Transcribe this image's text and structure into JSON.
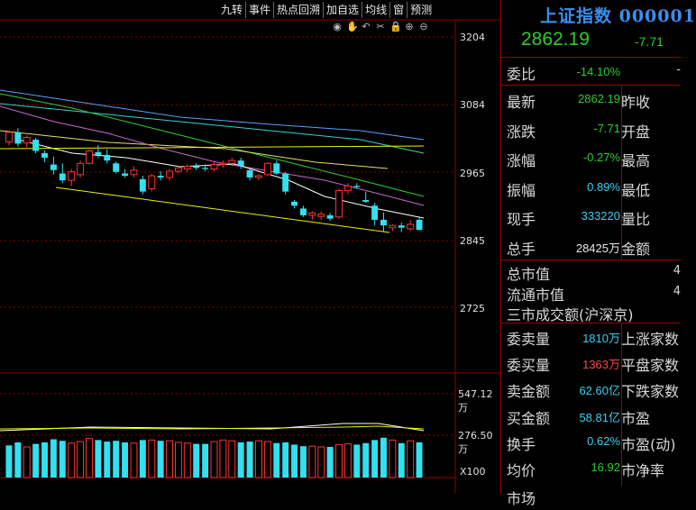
{
  "toolbar": [
    "九转",
    "事件",
    "热点回溯",
    "加自选",
    "均线",
    "窗",
    "预测"
  ],
  "tools": [
    {
      "icon": "eye-icon",
      "glyph": "◉"
    },
    {
      "icon": "hand-icon",
      "glyph": "✋"
    },
    {
      "icon": "undo-icon",
      "glyph": "↶"
    },
    {
      "icon": "scissors-icon",
      "glyph": "✂"
    },
    {
      "icon": "lock-icon",
      "glyph": "🔒"
    },
    {
      "icon": "zoom-in-icon",
      "glyph": "⊕"
    },
    {
      "icon": "zoom-out-icon",
      "glyph": "⊖"
    }
  ],
  "price_axis": [
    "3204",
    "3084",
    "2965",
    "2845",
    "2725"
  ],
  "volume_axis": [
    "547.12万",
    "276.50万",
    "X100"
  ],
  "colors": {
    "up": "#ff3333",
    "down": "#33e0f0",
    "green": "#2ecc2e",
    "grid": "#8b0000",
    "yellow": "#f0f000"
  },
  "chart_data": {
    "type": "candlestick",
    "candles": [
      [
        3018,
        3038,
        3012,
        3035
      ],
      [
        3035,
        3042,
        3010,
        3015
      ],
      [
        3016,
        3030,
        3005,
        3026
      ],
      [
        3022,
        3025,
        2998,
        3002
      ],
      [
        2998,
        3003,
        2982,
        2990
      ],
      [
        2978,
        2992,
        2960,
        2968
      ],
      [
        2962,
        2980,
        2945,
        2950
      ],
      [
        2950,
        2970,
        2940,
        2965
      ],
      [
        2960,
        2985,
        2955,
        2980
      ],
      [
        2980,
        3004,
        2978,
        3002
      ],
      [
        3000,
        3012,
        2990,
        2995
      ],
      [
        2995,
        3005,
        2980,
        2985
      ],
      [
        2980,
        2983,
        2962,
        2965
      ],
      [
        2962,
        2970,
        2955,
        2958
      ],
      [
        2960,
        2975,
        2955,
        2968
      ],
      [
        2952,
        2958,
        2925,
        2930
      ],
      [
        2935,
        2962,
        2930,
        2958
      ],
      [
        2958,
        2966,
        2950,
        2955
      ],
      [
        2955,
        2970,
        2950,
        2966
      ],
      [
        2966,
        2975,
        2962,
        2972
      ],
      [
        2970,
        2978,
        2964,
        2975
      ],
      [
        2975,
        2980,
        2968,
        2972
      ],
      [
        2972,
        2978,
        2966,
        2970
      ],
      [
        2970,
        2982,
        2966,
        2978
      ],
      [
        2978,
        2985,
        2972,
        2980
      ],
      [
        2980,
        2990,
        2975,
        2985
      ],
      [
        2985,
        2990,
        2970,
        2975
      ],
      [
        2968,
        2970,
        2950,
        2955
      ],
      [
        2955,
        2960,
        2950,
        2958
      ],
      [
        2960,
        2982,
        2958,
        2980
      ],
      [
        2980,
        2985,
        2960,
        2962
      ],
      [
        2962,
        2965,
        2925,
        2930
      ],
      [
        2912,
        2915,
        2900,
        2905
      ],
      [
        2900,
        2905,
        2885,
        2888
      ],
      [
        2888,
        2895,
        2880,
        2892
      ],
      [
        2886,
        2895,
        2880,
        2890
      ],
      [
        2888,
        2892,
        2878,
        2882
      ],
      [
        2885,
        2935,
        2882,
        2932
      ],
      [
        2932,
        2945,
        2925,
        2940
      ],
      [
        2940,
        2945,
        2935,
        2938
      ],
      [
        2915,
        2930,
        2910,
        2912
      ],
      [
        2905,
        2910,
        2870,
        2880
      ],
      [
        2880,
        2893,
        2858,
        2870
      ],
      [
        2866,
        2872,
        2860,
        2870
      ],
      [
        2870,
        2875,
        2858,
        2866
      ],
      [
        2864,
        2880,
        2860,
        2872
      ],
      [
        2880,
        2884,
        2862,
        2862
      ]
    ],
    "volume": [
      210,
      230,
      200,
      220,
      230,
      250,
      240,
      225,
      235,
      255,
      245,
      235,
      240,
      230,
      225,
      245,
      245,
      240,
      240,
      230,
      225,
      220,
      220,
      235,
      245,
      240,
      230,
      235,
      240,
      235,
      225,
      230,
      215,
      205,
      205,
      200,
      200,
      215,
      220,
      215,
      225,
      245,
      260,
      245,
      225,
      240,
      230
    ],
    "volume_colors_up": [
      0,
      0,
      1,
      0,
      0,
      0,
      0,
      1,
      1,
      1,
      0,
      0,
      0,
      0,
      1,
      0,
      1,
      0,
      1,
      1,
      1,
      0,
      0,
      1,
      1,
      1,
      0,
      0,
      1,
      1,
      0,
      0,
      0,
      0,
      1,
      1,
      0,
      1,
      1,
      0,
      0,
      0,
      0,
      1,
      0,
      1,
      0
    ]
  },
  "panel": {
    "title": "上证指数 000001",
    "price": "2862.19",
    "change": "-7.71",
    "weibi": {
      "label": "委比",
      "value": "-14.10%"
    },
    "rows": [
      {
        "l": "最新",
        "v": "2862.19",
        "c": "green",
        "r": "昨收"
      },
      {
        "l": "涨跌",
        "v": "-7.71",
        "c": "green",
        "r": "开盘"
      },
      {
        "l": "涨幅",
        "v": "-0.27%",
        "c": "green",
        "r": "最高"
      },
      {
        "l": "振幅",
        "v": "0.89%",
        "c": "cyan",
        "r": "最低"
      },
      {
        "l": "现手",
        "v": "333220",
        "c": "cyan",
        "r": "量比"
      },
      {
        "l": "总手",
        "v": "28425万",
        "c": "white",
        "r": "金额"
      }
    ],
    "mkt": [
      {
        "l": "总市值",
        "cut": "4"
      },
      {
        "l": "流通市值",
        "cut": "4"
      }
    ],
    "turnover_label": "三市成交额(沪深京)",
    "rows2": [
      {
        "l": "委卖量",
        "v": "1810万",
        "c": "cyan",
        "r": "上涨家数"
      },
      {
        "l": "委买量",
        "v": "1363万",
        "c": "red",
        "r": "平盘家数"
      },
      {
        "l": "卖金额",
        "v": "62.60亿",
        "c": "cyan",
        "r": "下跌家数"
      },
      {
        "l": "买金额",
        "v": "58.81亿",
        "c": "cyan",
        "r": "市盈"
      },
      {
        "l": "换手",
        "v": "0.62%",
        "c": "cyan",
        "r": "市盈(动)"
      },
      {
        "l": "均价",
        "v": "16.92",
        "c": "green",
        "r": "市净率"
      }
    ],
    "last_label": "市场"
  }
}
